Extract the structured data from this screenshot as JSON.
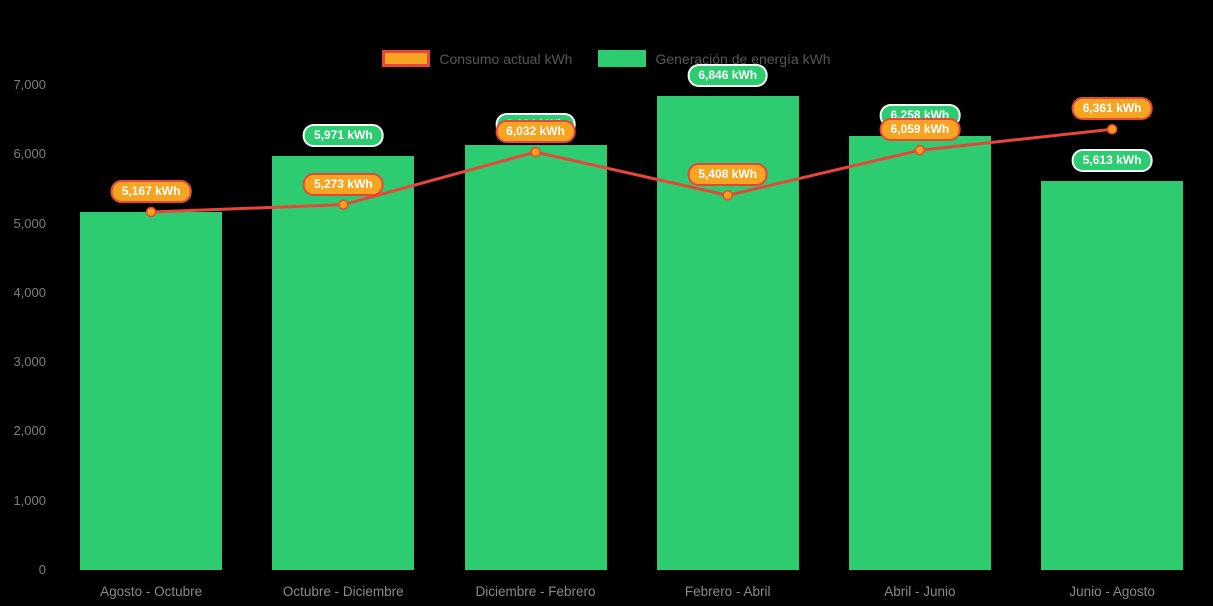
{
  "colors": {
    "background": "#000000",
    "bar_green": "#2ecc71",
    "line_red": "#e8463b",
    "point_orange": "#ff9e1b",
    "badge_orange_bg": "#f6a523",
    "badge_orange_border": "#e8463b",
    "badge_green_bg": "#2ecc71",
    "axis_text": "#7d7d7d",
    "category_text": "#8a8a8a",
    "legend_text": "#565656"
  },
  "legend": {
    "consumo_label": "Consumo actual kWh",
    "generacion_label": "Generación de energía kWh"
  },
  "chart_data": {
    "type": "bar+line",
    "title": "",
    "xlabel": "",
    "ylabel": "",
    "categories": [
      "Agosto - Octubre",
      "Octubre - Diciembre",
      "Diciembre - Febrero",
      "Febrero - Abril",
      "Abril - Junio",
      "Junio - Agosto"
    ],
    "series": [
      {
        "name": "Consumo actual kWh",
        "type": "line",
        "values": [
          5167,
          5273,
          6032,
          5408,
          6059,
          6361
        ],
        "labels": [
          "5,167 kWh",
          "5,273 kWh",
          "6,032 kWh",
          "5,408 kWh",
          "6,059 kWh",
          "6,361 kWh"
        ]
      },
      {
        "name": "Generación de energía kWh",
        "type": "bar",
        "values": [
          5167,
          5971,
          6134,
          6846,
          6258,
          5613
        ],
        "labels": [
          "5,167 kWh",
          "5,971 kWh",
          "6,134 kWh",
          "6,846 kWh",
          "6,258 kWh",
          "5,613 kWh"
        ]
      }
    ],
    "ylim": [
      0,
      7000
    ],
    "y_ticks": [
      "0",
      "1,000",
      "2,000",
      "3,000",
      "4,000",
      "5,000",
      "6,000",
      "7,000"
    ],
    "y_tick_values": [
      0,
      1000,
      2000,
      3000,
      4000,
      5000,
      6000,
      7000
    ],
    "grid": false,
    "legend_position": "top"
  }
}
